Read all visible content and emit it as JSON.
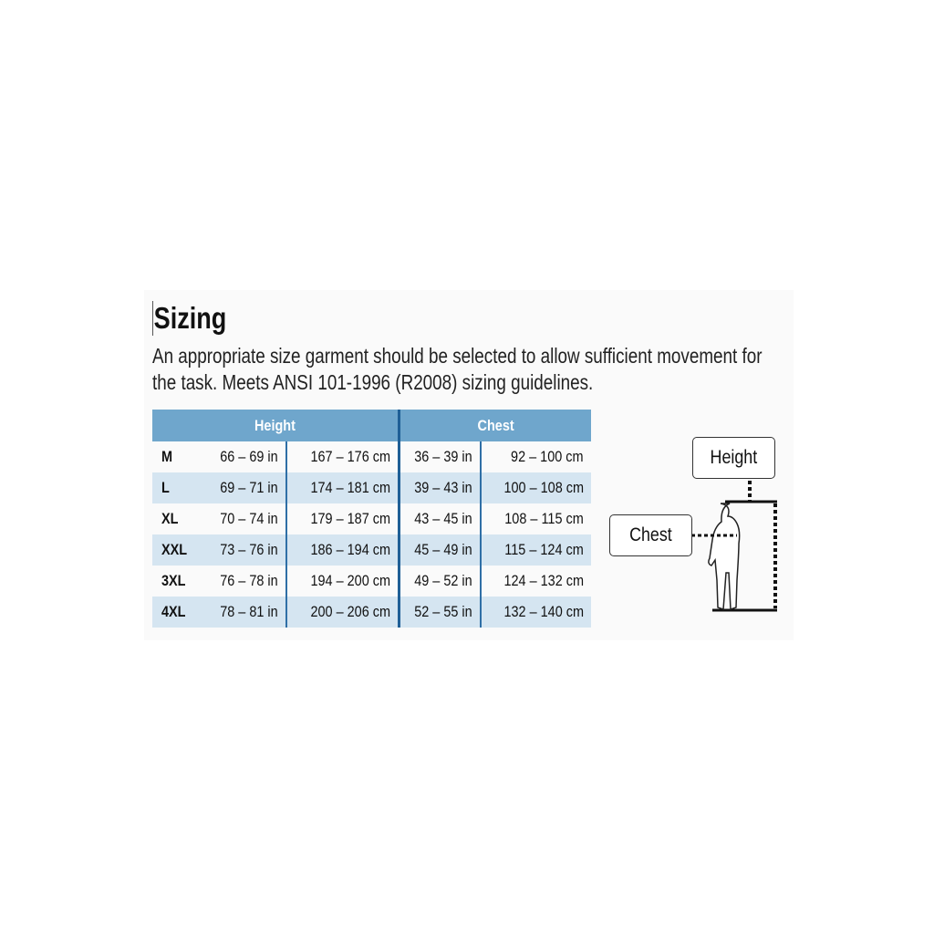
{
  "title": "Sizing",
  "description": [
    "An appropriate size garment should be selected to allow sufficient movement for",
    "the task. Meets ANSI 101-1996 (R2008) sizing guidelines."
  ],
  "table": {
    "headers": [
      "Height",
      "Chest"
    ],
    "rows": [
      {
        "size": "M",
        "height_in": "66 – 69 in",
        "height_cm": "167 – 176 cm",
        "chest_in": "36 – 39 in",
        "chest_cm": "92 – 100 cm"
      },
      {
        "size": "L",
        "height_in": "69 – 71 in",
        "height_cm": "174 – 181 cm",
        "chest_in": "39 – 43 in",
        "chest_cm": "100 – 108 cm"
      },
      {
        "size": "XL",
        "height_in": "70 – 74 in",
        "height_cm": "179 – 187 cm",
        "chest_in": "43 – 45 in",
        "chest_cm": "108 – 115 cm"
      },
      {
        "size": "XXL",
        "height_in": "73 – 76 in",
        "height_cm": "186 – 194 cm",
        "chest_in": "45 – 49 in",
        "chest_cm": "115 – 124 cm"
      },
      {
        "size": "3XL",
        "height_in": "76 – 78 in",
        "height_cm": "194 – 200 cm",
        "chest_in": "49 – 52 in",
        "chest_cm": "124 – 132 cm"
      },
      {
        "size": "4XL",
        "height_in": "78 – 81 in",
        "height_cm": "200 – 206 cm",
        "chest_in": "52 – 55 in",
        "chest_cm": "132 – 140 cm"
      }
    ]
  },
  "figure": {
    "height_label": "Height",
    "chest_label": "Chest"
  },
  "colors": {
    "header": "#6fa6cc",
    "alt_row": "#d5e5f1",
    "divider": "#2f6fa6"
  }
}
